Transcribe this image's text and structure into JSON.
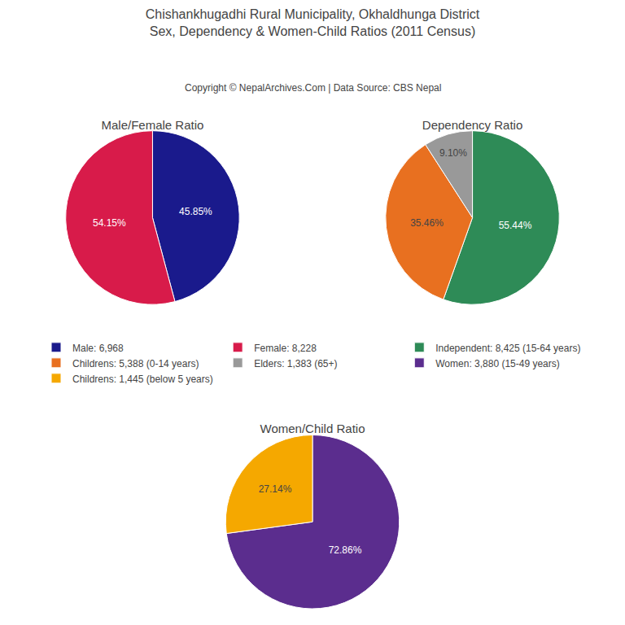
{
  "title": "Chishankhugadhi Rural Municipality, Okhaldhunga District",
  "subtitle": "Sex, Dependency & Women-Child Ratios (2011 Census)",
  "annotations": [
    "Copyright © NepalArchives.Com | Data Source: CBS Nepal"
  ],
  "chart_data": [
    {
      "type": "pie",
      "title": "Male/Female Ratio",
      "categories": [
        "Male: 6,968",
        "Female: 8,228"
      ],
      "values": [
        45.85,
        54.15
      ],
      "value_labels": [
        "45.85%",
        "54.15%"
      ],
      "colors": [
        "#1a1a8c",
        "#d81b4a"
      ],
      "data_labels": true,
      "legend": "center"
    },
    {
      "type": "pie",
      "title": "Dependency Ratio",
      "categories": [
        "Independent: 8,425 (15-64 years)",
        "Childrens: 5,388 (0-14 years)",
        "Elders: 1,383 (65+)"
      ],
      "values": [
        55.44,
        35.46,
        9.1
      ],
      "value_labels": [
        "55.44%",
        "35.46%",
        "9.10%"
      ],
      "colors": [
        "#2e8b57",
        "#e87020",
        "#999999"
      ],
      "data_labels": true,
      "legend": "center"
    },
    {
      "type": "pie",
      "title": "Women/Child Ratio",
      "categories": [
        "Women: 3,880 (15-49 years)",
        "Childrens: 1,445 (below 5 years)"
      ],
      "values": [
        72.86,
        27.14
      ],
      "value_labels": [
        "72.86%",
        "27.14%"
      ],
      "colors": [
        "#5b2d8e",
        "#f5a800"
      ],
      "data_labels": true,
      "legend": "center"
    }
  ]
}
